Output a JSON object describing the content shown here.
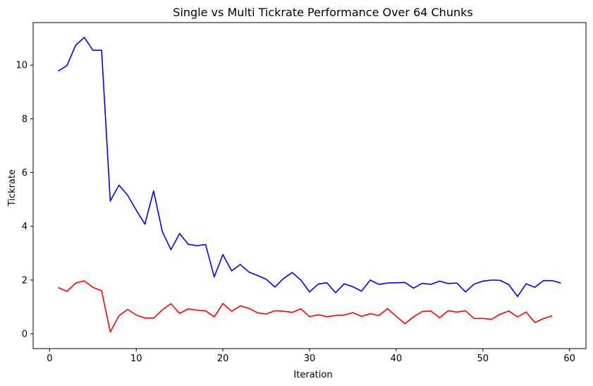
{
  "chart_data": {
    "type": "line",
    "title": "Single vs Multi Tickrate Performance Over 64 Chunks",
    "xlabel": "Iteration",
    "ylabel": "Tickrate",
    "xlim": [
      -1.9,
      61.9
    ],
    "ylim": [
      -0.55,
      11.58
    ],
    "xticks": [
      0,
      10,
      20,
      30,
      40,
      50,
      60
    ],
    "yticks": [
      0,
      2,
      4,
      6,
      8,
      10
    ],
    "grid": false,
    "legend": "none",
    "series": [
      {
        "color": "#0000ff",
        "x": [
          1,
          2,
          3,
          4,
          5,
          6,
          7,
          8,
          9,
          10,
          11,
          12,
          13,
          14,
          15,
          16,
          17,
          18,
          19,
          20,
          21,
          22,
          23,
          24,
          25,
          26,
          27,
          28,
          29,
          30,
          31,
          32,
          33,
          34,
          35,
          36,
          37,
          38,
          39,
          40,
          41,
          42,
          43,
          44,
          45,
          46,
          47,
          48,
          49,
          50,
          51,
          52,
          53,
          54,
          55,
          56,
          57,
          58,
          59
        ],
        "values": [
          9.78,
          9.98,
          10.73,
          11.03,
          10.55,
          10.55,
          4.94,
          5.53,
          5.16,
          4.6,
          4.08,
          5.32,
          3.81,
          3.13,
          3.73,
          3.33,
          3.28,
          3.32,
          2.12,
          2.95,
          2.34,
          2.58,
          2.3,
          2.17,
          2.03,
          1.74,
          2.06,
          2.28,
          2.0,
          1.56,
          1.85,
          1.9,
          1.53,
          1.86,
          1.75,
          1.59,
          2.0,
          1.84,
          1.89,
          1.9,
          1.91,
          1.7,
          1.88,
          1.84,
          1.96,
          1.87,
          1.89,
          1.56,
          1.85,
          1.96,
          2.0,
          1.99,
          1.83,
          1.39,
          1.86,
          1.73,
          1.98,
          1.98,
          1.89
        ]
      },
      {
        "color": "#ff0000",
        "x": [
          1,
          2,
          3,
          4,
          5,
          6,
          7,
          8,
          9,
          10,
          11,
          12,
          13,
          14,
          15,
          16,
          17,
          18,
          19,
          20,
          21,
          22,
          23,
          24,
          25,
          26,
          27,
          28,
          29,
          30,
          31,
          32,
          33,
          34,
          35,
          36,
          37,
          38,
          39,
          40,
          41,
          42,
          43,
          44,
          45,
          46,
          47,
          48,
          49,
          50,
          51,
          52,
          53,
          54,
          55,
          56,
          57,
          58
        ],
        "values": [
          1.72,
          1.58,
          1.89,
          1.97,
          1.73,
          1.6,
          0.07,
          0.67,
          0.91,
          0.7,
          0.59,
          0.58,
          0.89,
          1.12,
          0.76,
          0.93,
          0.88,
          0.86,
          0.63,
          1.13,
          0.84,
          1.04,
          0.95,
          0.78,
          0.74,
          0.86,
          0.84,
          0.8,
          0.93,
          0.64,
          0.71,
          0.64,
          0.68,
          0.7,
          0.79,
          0.65,
          0.75,
          0.68,
          0.94,
          0.65,
          0.38,
          0.63,
          0.83,
          0.85,
          0.6,
          0.86,
          0.81,
          0.86,
          0.57,
          0.57,
          0.54,
          0.73,
          0.85,
          0.63,
          0.81,
          0.42,
          0.57,
          0.67
        ]
      }
    ]
  }
}
